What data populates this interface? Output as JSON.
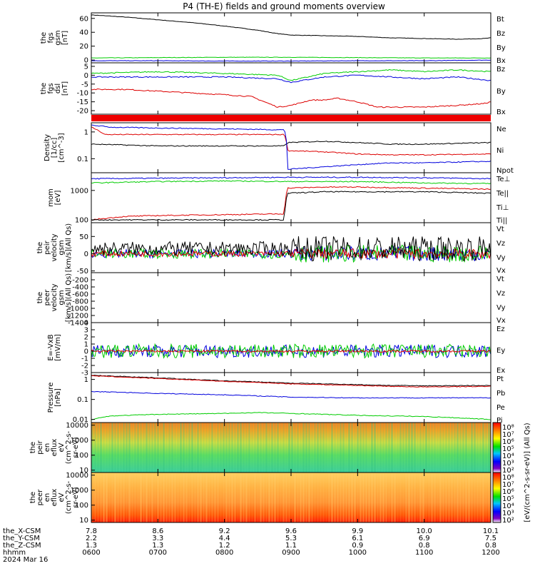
{
  "title": "P4 (TH-E) fields and ground moments overview",
  "colors": {
    "black": "#000000",
    "red": "#dd0000",
    "green": "#00cc00",
    "blue": "#0000dd"
  },
  "chart_data": [
    {
      "type": "line",
      "panel": "fgs-gsm",
      "ylabel": [
        "the",
        "fgs",
        "gsm",
        "[nT]"
      ],
      "ylim": [
        -4,
        68
      ],
      "yticks": [
        0,
        20,
        40,
        60
      ],
      "legend": [
        {
          "label": "Bt",
          "color": "black"
        },
        {
          "label": "Bz",
          "color": "red"
        },
        {
          "label": "By",
          "color": "green"
        },
        {
          "label": "Bx",
          "color": "blue"
        }
      ],
      "series": [
        {
          "color": "black",
          "x": [
            6.0,
            6.5,
            7.0,
            7.5,
            8.0,
            8.5,
            8.8,
            9.0,
            9.5,
            10.0,
            10.5,
            11.0,
            11.5,
            11.9,
            12.0
          ],
          "y": [
            65,
            62,
            58,
            54,
            49,
            43,
            38,
            36,
            35,
            34,
            32,
            31,
            30,
            31,
            32
          ]
        },
        {
          "color": "green",
          "x": [
            6.0,
            7.0,
            8.0,
            9.0,
            10.0,
            11.0,
            12.0
          ],
          "y": [
            3,
            3.5,
            4,
            4,
            3.5,
            3,
            3
          ]
        },
        {
          "color": "blue",
          "x": [
            6.0,
            7.0,
            8.0,
            9.0,
            10.0,
            11.0,
            12.0
          ],
          "y": [
            -1,
            -1,
            -1.5,
            -1.5,
            -1,
            -1,
            0
          ]
        }
      ]
    },
    {
      "type": "line",
      "panel": "fgs-dsl",
      "ylabel": [
        "the",
        "fgs",
        "dsl",
        "[nT]"
      ],
      "ylim": [
        -22,
        7
      ],
      "yticks": [
        5,
        0,
        -5,
        -10,
        -15,
        -20
      ],
      "legend": [
        {
          "label": "Bz",
          "color": "red"
        },
        {
          "label": "By",
          "color": "green"
        },
        {
          "label": "Bx",
          "color": "blue"
        }
      ],
      "series": [
        {
          "color": "red",
          "x": [
            6.0,
            6.5,
            7.0,
            7.5,
            8.0,
            8.4,
            8.6,
            8.8,
            9.0,
            9.3,
            9.5,
            9.7,
            10.0,
            10.3,
            10.6,
            11.0,
            11.5,
            11.9,
            12.0
          ],
          "y": [
            -8,
            -8,
            -9,
            -10,
            -11,
            -12,
            -15,
            -18,
            -17,
            -14,
            -14,
            -13,
            -15,
            -18,
            -18,
            -18,
            -17,
            -16,
            -15
          ]
        },
        {
          "color": "green",
          "x": [
            6.0,
            7.0,
            8.0,
            8.8,
            9.0,
            9.5,
            10.0,
            10.5,
            11.0,
            11.5,
            12.0
          ],
          "y": [
            1,
            2,
            1,
            0,
            -3,
            1,
            2,
            3,
            2,
            3,
            2
          ]
        },
        {
          "color": "blue",
          "x": [
            6.0,
            7.0,
            8.0,
            8.8,
            9.0,
            9.5,
            10.0,
            10.5,
            11.0,
            11.5,
            12.0
          ],
          "y": [
            -1,
            -1,
            -1,
            -2,
            -4,
            -1,
            0,
            -1,
            -2,
            -1,
            -3
          ]
        }
      ]
    },
    {
      "type": "line",
      "panel": "density",
      "yscale": "log",
      "ylabel": [
        "Density",
        "[1/cc]",
        "[cm^-3]"
      ],
      "ylim": [
        0.03,
        2.2
      ],
      "yticks": [
        1.0,
        0.1
      ],
      "legend": [
        {
          "label": "Ne",
          "color": "red"
        },
        {
          "label": "Ni",
          "color": "black"
        },
        {
          "label": "Npot",
          "color": "blue"
        }
      ],
      "series": [
        {
          "color": "red",
          "x": [
            6.0,
            6.2,
            7.0,
            8.0,
            8.9,
            8.95,
            9.5,
            10.0,
            10.5,
            11.0,
            12.0
          ],
          "y": [
            1.5,
            0.8,
            0.8,
            0.8,
            0.8,
            0.2,
            0.18,
            0.15,
            0.14,
            0.14,
            0.15
          ]
        },
        {
          "color": "black",
          "x": [
            6.0,
            7.0,
            8.0,
            8.9,
            8.95,
            9.5,
            10.0,
            10.5,
            11.0,
            12.0
          ],
          "y": [
            0.35,
            0.3,
            0.3,
            0.3,
            0.4,
            0.45,
            0.4,
            0.35,
            0.35,
            0.4
          ]
        },
        {
          "color": "blue",
          "x": [
            6.0,
            6.3,
            7.0,
            8.0,
            8.9,
            8.95,
            9.5,
            10.0,
            10.5,
            11.0,
            12.0
          ],
          "y": [
            1.8,
            1.5,
            1.4,
            1.3,
            1.2,
            0.04,
            0.05,
            0.06,
            0.07,
            0.07,
            0.08
          ]
        }
      ]
    },
    {
      "type": "line",
      "panel": "temperature",
      "yscale": "log",
      "ylabel": [
        "mom",
        "[eV]"
      ],
      "ylim": [
        80,
        4000
      ],
      "yticks": [
        1000,
        100
      ],
      "legend": [
        {
          "label": "Te⊥",
          "color": "red"
        },
        {
          "label": "Te||",
          "color": "black"
        },
        {
          "label": "Ti⊥",
          "color": "green"
        },
        {
          "label": "Ti||",
          "color": "green"
        }
      ],
      "series": [
        {
          "color": "blue",
          "x": [
            6.0,
            7.0,
            8.0,
            9.0,
            10.0,
            11.0,
            12.0
          ],
          "y": [
            2500,
            2600,
            2700,
            2800,
            2800,
            2700,
            2500
          ]
        },
        {
          "color": "green",
          "x": [
            6.0,
            7.0,
            8.0,
            9.0,
            10.0,
            11.0,
            12.0
          ],
          "y": [
            1800,
            2000,
            2100,
            2000,
            2000,
            1800,
            1700
          ]
        },
        {
          "color": "red",
          "x": [
            6.0,
            6.5,
            7.0,
            8.0,
            8.9,
            8.95,
            9.5,
            10.0,
            11.0,
            12.0
          ],
          "y": [
            100,
            130,
            140,
            150,
            160,
            1200,
            1300,
            1300,
            1200,
            1100
          ]
        },
        {
          "color": "black",
          "x": [
            6.0,
            7.0,
            8.0,
            8.9,
            8.95,
            9.5,
            10.0,
            11.0,
            12.0
          ],
          "y": [
            100,
            100,
            100,
            100,
            800,
            900,
            900,
            900,
            800
          ]
        }
      ]
    },
    {
      "type": "line",
      "panel": "peir-velocity",
      "ylabel": [
        "the",
        "peir",
        "velocity",
        "gsm",
        "[km/s](All Qs)"
      ],
      "ylim": [
        -55,
        90
      ],
      "yticks": [
        50,
        0,
        -50
      ],
      "legend": [
        {
          "label": "Vt",
          "color": "black"
        },
        {
          "label": "Vz",
          "color": "red"
        },
        {
          "label": "Vy",
          "color": "green"
        },
        {
          "label": "Vx",
          "color": "blue"
        }
      ],
      "series": []
    },
    {
      "type": "line",
      "panel": "peer-velocity",
      "ylabel": [
        "the",
        "peer",
        "velocity",
        "gsm",
        "[km/s](All Qs)"
      ],
      "ylim": [
        -1400,
        0
      ],
      "yticks": [
        -200,
        -400,
        -600,
        -800,
        -1000,
        -1200,
        -1400
      ],
      "legend": [
        {
          "label": "Vt",
          "color": "black"
        },
        {
          "label": "Vz",
          "color": "red"
        },
        {
          "label": "Vy",
          "color": "green"
        },
        {
          "label": "Vx",
          "color": "blue"
        }
      ],
      "series": []
    },
    {
      "type": "line",
      "panel": "e-field",
      "ylabel": [
        "E=-VxB",
        "[mV/m]"
      ],
      "ylim": [
        -3,
        4
      ],
      "yticks": [
        4,
        3,
        2,
        1,
        0,
        -1,
        -2,
        -3
      ],
      "legend": [
        {
          "label": "Ez",
          "color": "red"
        },
        {
          "label": "Ey",
          "color": "green"
        },
        {
          "label": "Ex",
          "color": "blue"
        }
      ],
      "series": []
    },
    {
      "type": "line",
      "panel": "pressure",
      "yscale": "log",
      "ylabel": [
        "Pressure",
        "[nPa]"
      ],
      "ylim": [
        0.007,
        2.2
      ],
      "yticks": [
        1.0,
        0.1,
        0.01
      ],
      "legend": [
        {
          "label": "Pt",
          "color": "black"
        },
        {
          "label": "Pb",
          "color": "red"
        },
        {
          "label": "Pe",
          "color": "green"
        },
        {
          "label": "Pi",
          "color": "blue"
        }
      ],
      "series": [
        {
          "color": "black",
          "x": [
            6.0,
            6.5,
            7.0,
            7.5,
            8.0,
            8.5,
            9.0,
            9.5,
            10.0,
            10.5,
            11.0,
            12.0
          ],
          "y": [
            1.6,
            1.4,
            1.2,
            1.0,
            0.85,
            0.75,
            0.65,
            0.6,
            0.55,
            0.5,
            0.48,
            0.5
          ]
        },
        {
          "color": "red",
          "x": [
            6.0,
            6.5,
            7.0,
            7.5,
            8.0,
            8.5,
            9.0,
            9.5,
            10.0,
            10.5,
            11.0,
            12.0
          ],
          "y": [
            1.5,
            1.3,
            1.1,
            0.95,
            0.8,
            0.7,
            0.6,
            0.55,
            0.5,
            0.45,
            0.42,
            0.45
          ]
        },
        {
          "color": "blue",
          "x": [
            6.0,
            7.0,
            8.0,
            9.0,
            10.0,
            11.0,
            12.0
          ],
          "y": [
            0.25,
            0.2,
            0.17,
            0.13,
            0.12,
            0.12,
            0.12
          ]
        },
        {
          "color": "green",
          "x": [
            6.0,
            6.3,
            7.0,
            8.0,
            8.5,
            9.0,
            10.0,
            11.0,
            12.0
          ],
          "y": [
            0.01,
            0.015,
            0.018,
            0.02,
            0.022,
            0.02,
            0.016,
            0.014,
            0.01
          ]
        }
      ]
    },
    {
      "type": "heatmap",
      "panel": "peir-en-eflux",
      "yscale": "log",
      "ylabel": [
        "the",
        "peir",
        "en",
        "eflux",
        "eV",
        "(cm^2-s-",
        "sr-eV)"
      ],
      "ylim": [
        7,
        15000
      ],
      "yticks": [
        10000,
        1000,
        100,
        10
      ]
    },
    {
      "type": "heatmap",
      "panel": "peer-en-eflux",
      "yscale": "log",
      "ylabel": [
        "the",
        "peer",
        "en",
        "eflux",
        "eV",
        "(cm^2-s-",
        "sr-eV)"
      ],
      "ylim": [
        7,
        15000
      ],
      "yticks": [
        10000,
        1000,
        100,
        10
      ]
    }
  ],
  "colorbars": [
    {
      "ticks": [
        "10⁸",
        "10⁷",
        "10⁶",
        "10⁵",
        "10⁴",
        "10³",
        "10²"
      ]
    },
    {
      "ticks": [
        "10⁸",
        "10⁷",
        "10⁶",
        "10⁵",
        "10⁴",
        "10³",
        "10²"
      ]
    }
  ],
  "colorbar_label": "[eV/(cm^2-s-sr-eV)] (All Qs)",
  "x_axis": {
    "rows": [
      {
        "label": "the_X-CSM",
        "values": [
          "7.8",
          "8.6",
          "9.2",
          "9.6",
          "9.9",
          "10.0",
          "10.1"
        ]
      },
      {
        "label": "the_Y-CSM",
        "values": [
          "2.2",
          "3.3",
          "4.4",
          "5.3",
          "6.1",
          "6.9",
          "7.5"
        ]
      },
      {
        "label": "the_Z-CSM",
        "values": [
          "1.3",
          "1.3",
          "1.2",
          "1.1",
          "0.9",
          "0.8",
          "0.8"
        ]
      },
      {
        "label": "hhmm",
        "values": [
          "0600",
          "0700",
          "0800",
          "0900",
          "1000",
          "1100",
          "1200"
        ]
      }
    ],
    "date": "2024 Mar 16"
  }
}
